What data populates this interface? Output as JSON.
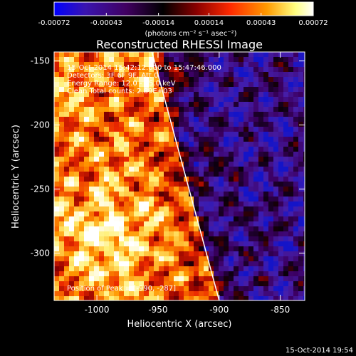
{
  "chart_data": {
    "type": "heatmap",
    "title": "Reconstructed RHESSI Image",
    "xlabel": "Heliocentric X (arcsec)",
    "ylabel": "Heliocentric Y (arcsec)",
    "xlim": [
      -1035,
      -830
    ],
    "ylim": [
      -337,
      -143
    ],
    "xticks": [
      -1000,
      -950,
      -900,
      -850
    ],
    "xtick_labels": [
      "-1000",
      "-950",
      "-900",
      "-850"
    ],
    "yticks": [
      -150,
      -200,
      -250,
      -300
    ],
    "ytick_labels": [
      "-150",
      "-200",
      "-250",
      "-300"
    ],
    "colorbar": {
      "range": [
        -0.00072,
        0.00072
      ],
      "ticks": [
        -0.00072,
        -0.00043,
        -0.00014,
        0.00014,
        0.00043,
        0.00072
      ],
      "tick_labels": [
        "-0.00072",
        "-0.00043",
        "-0.00014",
        "0.00014",
        "0.00043",
        "0.00072"
      ],
      "units_label": "(photons cm⁻² s⁻¹ asec⁻²)",
      "colormap": [
        "#0000ff",
        "#5a1a9a",
        "#3a0060",
        "#000000",
        "#8a0000",
        "#ff2a00",
        "#ff9a00",
        "#ffff88",
        "#ffffff"
      ]
    },
    "info_lines": [
      "15-Oct-2014 15:42:12.000 to 15:47:46.000",
      "Detectors: 3F 6F 9F, Att 0",
      "Energy Range: 12.0 - 25.0 keV",
      "Clean    Total counts: 2.89E+03"
    ],
    "peak_text": "Position of Peak = [-990, -287]",
    "peak_position": [
      -990,
      -287
    ],
    "limb_line": {
      "points": [
        [
          -955,
          -143
        ],
        [
          -900,
          -337
        ]
      ],
      "color": "#ffffff"
    }
  },
  "footer": {
    "timestamp": "15-Oct-2014 19:54"
  }
}
